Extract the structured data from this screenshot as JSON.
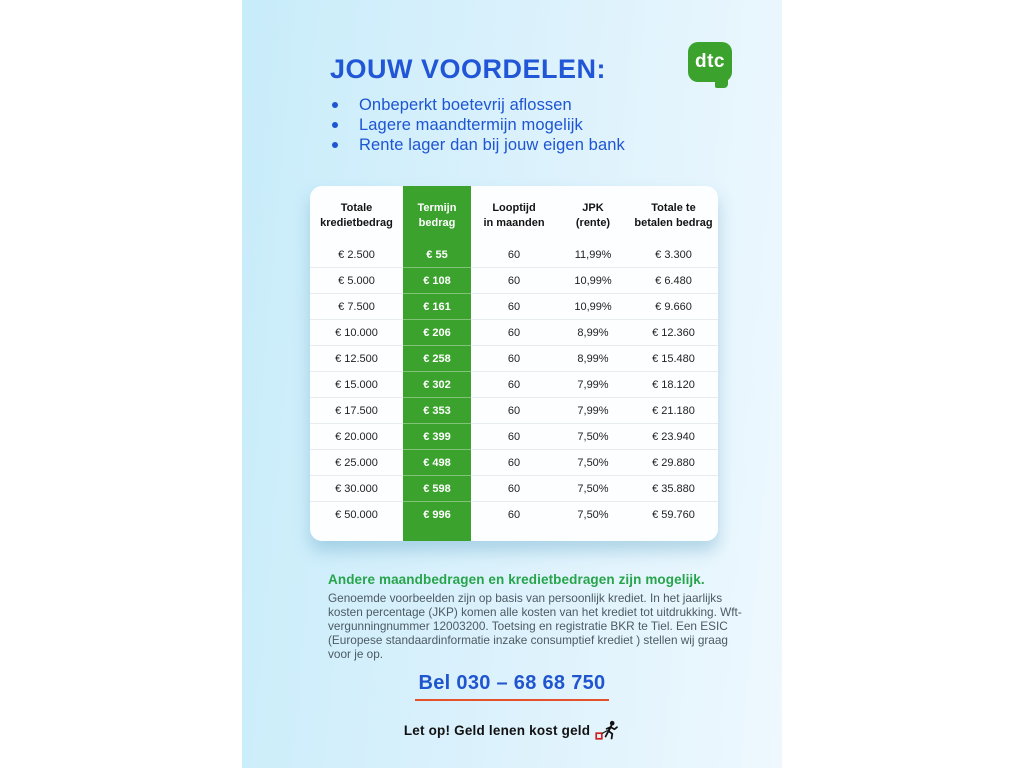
{
  "page": {
    "title": "JOUW VOORDELEN:",
    "logo_text": "dtc",
    "bullets": [
      "Onbeperkt boetevrij aflossen",
      "Lagere maandtermijn mogelijk",
      "Rente lager dan bij jouw eigen bank"
    ]
  },
  "table": {
    "columns": [
      [
        "Totale",
        "kredietbedrag"
      ],
      [
        "Termijn",
        "bedrag"
      ],
      [
        "Looptijd",
        "in maanden"
      ],
      [
        "JPK",
        "(rente)"
      ],
      [
        "Totale te",
        "betalen bedrag"
      ]
    ],
    "rows": [
      [
        "€ 2.500",
        "€ 55",
        "60",
        "11,99%",
        "€ 3.300"
      ],
      [
        "€ 5.000",
        "€ 108",
        "60",
        "10,99%",
        "€ 6.480"
      ],
      [
        "€ 7.500",
        "€ 161",
        "60",
        "10,99%",
        "€ 9.660"
      ],
      [
        "€ 10.000",
        "€ 206",
        "60",
        "8,99%",
        "€ 12.360"
      ],
      [
        "€ 12.500",
        "€ 258",
        "60",
        "8,99%",
        "€ 15.480"
      ],
      [
        "€ 15.000",
        "€ 302",
        "60",
        "7,99%",
        "€ 18.120"
      ],
      [
        "€ 17.500",
        "€ 353",
        "60",
        "7,99%",
        "€ 21.180"
      ],
      [
        "€ 20.000",
        "€ 399",
        "60",
        "7,50%",
        "€ 23.940"
      ],
      [
        "€ 25.000",
        "€ 498",
        "60",
        "7,50%",
        "€ 29.880"
      ],
      [
        "€ 30.000",
        "€ 598",
        "60",
        "7,50%",
        "€ 35.880"
      ],
      [
        "€ 50.000",
        "€ 996",
        "60",
        "7,50%",
        "€ 59.760"
      ]
    ],
    "highlighted_column_index": 1
  },
  "footer": {
    "highlight": "Andere maandbedragen en kredietbedragen zijn mogelijk.",
    "disclaimer": "Genoemde voorbeelden zijn op basis van persoonlijk krediet. In het jaarlijks kosten percentage (JKP) komen alle kosten van het krediet tot uitdrukking. Wft-vergunningnummer 12003200. Toetsing en registratie BKR te Tiel. Een ESIC (Europese standaardinformatie inzake consumptief krediet ) stellen wij graag voor je op.",
    "phone": "Bel 030 – 68 68 750",
    "warning": "Let op! Geld lenen kost geld"
  },
  "colors": {
    "accent_blue": "#2156d6",
    "brand_green": "#3ba32d",
    "table_green": "#3ca22e",
    "highlight_green": "#27a44b",
    "underline_orange": "#e4512b",
    "panel_blue_left": "#c8ecfa",
    "panel_blue_right": "#eef8fe"
  }
}
